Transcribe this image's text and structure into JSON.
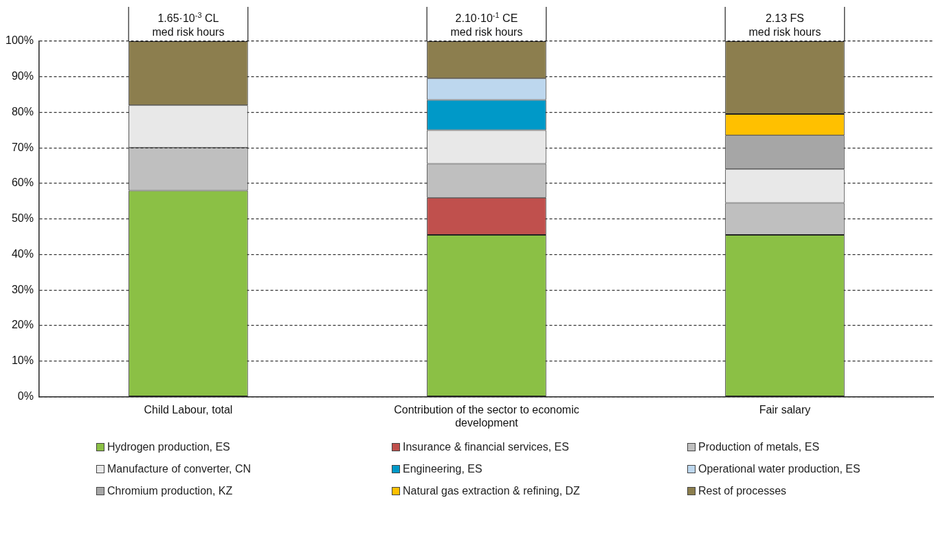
{
  "chart_data": {
    "type": "bar",
    "stacked": true,
    "categories": [
      "Child Labour, total",
      "Contribution of the sector to economic development",
      "Fair salary"
    ],
    "series": [
      {
        "name": "Hydrogen production, ES",
        "color": "#8bc045",
        "values": [
          58,
          45.5,
          45.5
        ]
      },
      {
        "name": "Insurance & financial services, ES",
        "color": "#c0504d",
        "values": [
          null,
          10.5,
          null
        ]
      },
      {
        "name": "Production of metals, ES",
        "color": "#bfbfbf",
        "values": [
          12,
          9.5,
          9
        ]
      },
      {
        "name": "Manufacture of converter, CN",
        "color": "#e8e8e8",
        "values": [
          12,
          9.5,
          9.5
        ]
      },
      {
        "name": "Engineering, ES",
        "color": "#0099c8",
        "values": [
          null,
          8.5,
          null
        ]
      },
      {
        "name": "Operational water production, ES",
        "color": "#bdd7ee",
        "values": [
          null,
          6,
          null
        ]
      },
      {
        "name": "Chromium production, KZ",
        "color": "#a6a6a6",
        "values": [
          null,
          null,
          9.5
        ]
      },
      {
        "name": "Natural gas extraction & refining, DZ",
        "color": "#ffc000",
        "values": [
          null,
          null,
          6
        ]
      },
      {
        "name": "Rest of processes",
        "color": "#8c7e4e",
        "values": [
          18,
          10.5,
          20.5
        ]
      }
    ],
    "ylim": [
      0,
      100
    ],
    "yticks": [
      {
        "value": 0,
        "label": "0%"
      },
      {
        "value": 10,
        "label": "10%"
      },
      {
        "value": 20,
        "label": "20%"
      },
      {
        "value": 30,
        "label": "30%"
      },
      {
        "value": 40,
        "label": "40%"
      },
      {
        "value": 50,
        "label": "50%"
      },
      {
        "value": 60,
        "label": "60%"
      },
      {
        "value": 70,
        "label": "70%"
      },
      {
        "value": 80,
        "label": "80%"
      },
      {
        "value": 90,
        "label": "90%"
      },
      {
        "value": 100,
        "label": "100%"
      }
    ],
    "grid": "y",
    "legend": "bottom",
    "annotations": [
      {
        "text": "1.65·10$^{-3}$ CL\nmed risk hours",
        "x": "Child Labour, total",
        "y": 100
      },
      {
        "text": "2.10·10$^{-1}$ CE\nmed risk hours",
        "x": "Contribution of the sector to economic development",
        "y": 100
      },
      {
        "text": "2.13 FS\nmed risk hours",
        "x": "Fair salary",
        "y": 100
      }
    ]
  }
}
